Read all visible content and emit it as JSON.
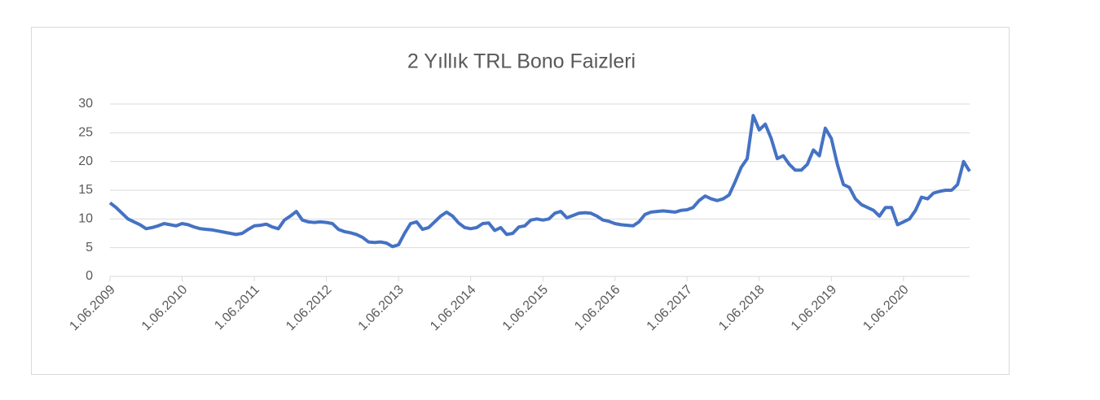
{
  "chart_data": {
    "type": "line",
    "title": "2 Yıllık TRL Bono Faizleri",
    "categories": [
      "1.06.2009",
      null,
      null,
      null,
      null,
      null,
      null,
      null,
      null,
      null,
      null,
      null,
      "1.06.2010",
      null,
      null,
      null,
      null,
      null,
      null,
      null,
      null,
      null,
      null,
      null,
      "1.06.2011",
      null,
      null,
      null,
      null,
      null,
      null,
      null,
      null,
      null,
      null,
      null,
      "1.06.2012",
      null,
      null,
      null,
      null,
      null,
      null,
      null,
      null,
      null,
      null,
      null,
      "1.06.2013",
      null,
      null,
      null,
      null,
      null,
      null,
      null,
      null,
      null,
      null,
      null,
      "1.06.2014",
      null,
      null,
      null,
      null,
      null,
      null,
      null,
      null,
      null,
      null,
      null,
      "1.06.2015",
      null,
      null,
      null,
      null,
      null,
      null,
      null,
      null,
      null,
      null,
      null,
      "1.06.2016",
      null,
      null,
      null,
      null,
      null,
      null,
      null,
      null,
      null,
      null,
      null,
      "1.06.2017",
      null,
      null,
      null,
      null,
      null,
      null,
      null,
      null,
      null,
      null,
      null,
      "1.06.2018",
      null,
      null,
      null,
      null,
      null,
      null,
      null,
      null,
      null,
      null,
      null,
      "1.06.2019",
      null,
      null,
      null,
      null,
      null,
      null,
      null,
      null,
      null,
      null,
      null,
      "1.06.2020",
      null,
      null,
      null,
      null,
      null,
      null,
      null,
      null,
      null,
      null,
      null
    ],
    "series": [
      {
        "color": "#4472c4",
        "values": [
          12.8,
          12,
          11,
          10,
          9.5,
          9,
          8.3,
          8.5,
          8.8,
          9.2,
          9,
          8.8,
          9.2,
          9,
          8.6,
          8.3,
          8.2,
          8.1,
          7.9,
          7.7,
          7.5,
          7.3,
          7.5,
          8.2,
          8.8,
          8.9,
          9.1,
          8.6,
          8.3,
          9.8,
          10.5,
          11.3,
          9.8,
          9.5,
          9.4,
          9.5,
          9.4,
          9.2,
          8.2,
          7.8,
          7.6,
          7.3,
          6.8,
          6,
          5.9,
          6,
          5.8,
          5.2,
          5.5,
          7.5,
          9.2,
          9.5,
          8.2,
          8.5,
          9.5,
          10.5,
          11.2,
          10.5,
          9.3,
          8.5,
          8.3,
          8.5,
          9.2,
          9.3,
          8,
          8.5,
          7.3,
          7.5,
          8.6,
          8.8,
          9.8,
          10,
          9.8,
          10,
          11,
          11.3,
          10.2,
          10.6,
          11,
          11.1,
          11,
          10.5,
          9.8,
          9.6,
          9.2,
          9,
          8.9,
          8.8,
          9.5,
          10.8,
          11.2,
          11.3,
          11.4,
          11.3,
          11.2,
          11.5,
          11.6,
          12,
          13.2,
          14,
          13.5,
          13.2,
          13.5,
          14.2,
          16.5,
          19,
          20.5,
          28,
          25.5,
          26.5,
          24,
          20.5,
          21,
          19.5,
          18.5,
          18.5,
          19.5,
          22,
          21,
          25.8,
          24,
          19.5,
          16,
          15.5,
          13.5,
          12.5,
          12,
          11.5,
          10.5,
          12,
          12,
          9,
          9.5,
          10,
          11.5,
          13.8,
          13.5,
          14.5,
          14.8,
          15,
          15,
          16,
          20,
          18.3
        ]
      }
    ],
    "ylim": [
      0,
      30
    ],
    "yticks": [
      0,
      5,
      10,
      15,
      20,
      25,
      30
    ],
    "grid": true
  }
}
